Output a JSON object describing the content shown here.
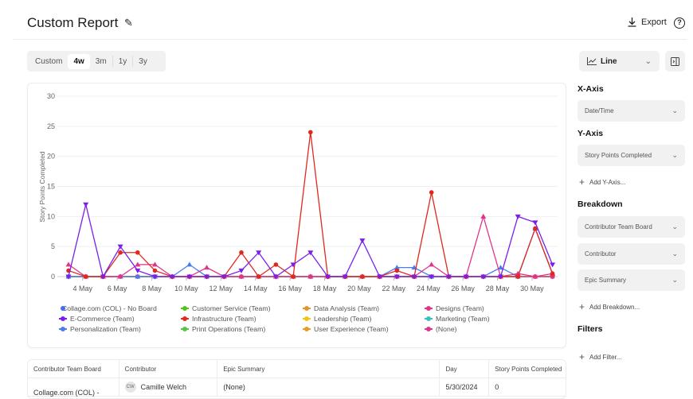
{
  "header": {
    "title": "Custom Report",
    "export_label": "Export",
    "help": "?"
  },
  "range": {
    "options": [
      "Custom",
      "4w",
      "3m",
      "1y",
      "3y"
    ],
    "active": "4w"
  },
  "chart_type": {
    "label": "Line"
  },
  "panel": {
    "x_axis_title": "X-Axis",
    "x_axis_value": "Date/Time",
    "y_axis_title": "Y-Axis",
    "y_axis_value": "Story Points Completed",
    "add_y": "Add Y-Axis...",
    "breakdown_title": "Breakdown",
    "breakdowns": [
      "Contributor Team Board",
      "Contributor",
      "Epic Summary"
    ],
    "add_breakdown": "Add Breakdown...",
    "filters_title": "Filters",
    "add_filter": "Add Filter..."
  },
  "chart_data": {
    "type": "line",
    "ylabel": "Story Points Completed",
    "xlabel": "",
    "ylim": [
      0,
      30
    ],
    "yticks": [
      0,
      5,
      10,
      15,
      20,
      25,
      30
    ],
    "x": [
      "3 May",
      "4 May",
      "5 May",
      "6 May",
      "7 May",
      "8 May",
      "9 May",
      "10 May",
      "11 May",
      "12 May",
      "13 May",
      "14 May",
      "15 May",
      "16 May",
      "17 May",
      "18 May",
      "19 May",
      "20 May",
      "21 May",
      "22 May",
      "23 May",
      "24 May",
      "25 May",
      "26 May",
      "27 May",
      "28 May",
      "29 May",
      "30 May",
      "31 May"
    ],
    "xtick_labels": [
      "4 May",
      "6 May",
      "8 May",
      "10 May",
      "12 May",
      "14 May",
      "16 May",
      "18 May",
      "20 May",
      "22 May",
      "24 May",
      "26 May",
      "28 May",
      "30 May"
    ],
    "grid": true,
    "legend_position": "bottom",
    "series": [
      {
        "name": "Collage.com (COL) - No Board",
        "color": "#3b6ff5",
        "marker": "circle",
        "values": [
          0,
          0,
          0,
          0,
          0,
          0,
          0,
          0,
          0,
          0,
          0,
          0,
          0,
          0,
          0,
          0,
          0,
          0,
          0,
          0,
          0,
          0,
          0,
          0,
          0,
          0,
          0,
          0,
          0
        ]
      },
      {
        "name": "Customer Service (Team)",
        "color": "#52c41a",
        "marker": "circle",
        "values": [
          0,
          0,
          0,
          0,
          0,
          0,
          0,
          0,
          0,
          0,
          0,
          0,
          0,
          0,
          0,
          0,
          0,
          0,
          0,
          0,
          0,
          0,
          0,
          0,
          0,
          0,
          0,
          0,
          0
        ]
      },
      {
        "name": "Data Analysis (Team)",
        "color": "#e8922a",
        "marker": "square",
        "values": [
          0,
          0,
          0,
          0,
          0,
          0,
          0,
          0,
          0,
          0,
          0,
          0,
          0,
          0,
          0,
          0,
          0,
          0,
          0,
          0,
          0,
          0,
          0,
          0,
          0,
          0,
          0,
          0,
          0
        ]
      },
      {
        "name": "Designs (Team)",
        "color": "#e0338a",
        "marker": "triangle",
        "values": [
          2,
          0,
          0,
          0,
          2,
          2,
          0,
          0,
          1.5,
          0,
          0,
          0,
          0,
          0,
          0,
          0,
          0,
          0,
          0,
          0,
          0,
          2,
          0,
          0,
          10,
          0,
          0.5,
          0,
          0.5
        ]
      },
      {
        "name": "E-Commerce (Team)",
        "color": "#7b1fe8",
        "marker": "triangle-down",
        "values": [
          0,
          12,
          0,
          5,
          1,
          0,
          0,
          0,
          0,
          0,
          1,
          4,
          0,
          2,
          4,
          0,
          0,
          6,
          0,
          0,
          0,
          0,
          0,
          0,
          0,
          0,
          10,
          9,
          2
        ]
      },
      {
        "name": "Infrastructure (Team)",
        "color": "#e0281e",
        "marker": "circle",
        "values": [
          1,
          0,
          0,
          4,
          4,
          1,
          0,
          0,
          0,
          0,
          4,
          0,
          2,
          0,
          24,
          0,
          0,
          0,
          0,
          1,
          0,
          14,
          0,
          0,
          0,
          0,
          0,
          8,
          0.5
        ]
      },
      {
        "name": "Leadership (Team)",
        "color": "#f0c419",
        "marker": "diamond",
        "values": [
          0,
          0,
          0,
          0,
          0,
          0,
          0,
          0,
          0,
          0,
          0,
          0,
          0,
          0,
          0,
          0,
          0,
          0,
          0,
          0,
          0,
          0,
          0,
          0,
          0,
          0,
          0,
          0,
          0
        ]
      },
      {
        "name": "Marketing (Team)",
        "color": "#3bbfbf",
        "marker": "square",
        "values": [
          0,
          0,
          0,
          0,
          0,
          0,
          0,
          0,
          0,
          0,
          0,
          0,
          0,
          0,
          0,
          0,
          0,
          0,
          0,
          0,
          0,
          0,
          0,
          0,
          0,
          0,
          0,
          0,
          0
        ]
      },
      {
        "name": "Personalization (Team)",
        "color": "#4a7cf0",
        "marker": "triangle",
        "values": [
          0,
          0,
          0,
          0,
          0,
          0,
          0,
          2,
          0,
          0,
          0,
          0,
          0,
          0,
          0,
          0,
          0,
          0,
          0,
          1.5,
          1.5,
          0,
          0,
          0,
          0,
          1.5,
          0,
          8,
          0.5
        ]
      },
      {
        "name": "Print Operations (Team)",
        "color": "#56c443",
        "marker": "square",
        "values": [
          0,
          0,
          0,
          0,
          0,
          0,
          0,
          0,
          0,
          0,
          0,
          0,
          0,
          0,
          0,
          0,
          0,
          0,
          0,
          0,
          0,
          0,
          0,
          0,
          0,
          0,
          0,
          0,
          0
        ]
      },
      {
        "name": "User Experience (Team)",
        "color": "#e89a2a",
        "marker": "square",
        "values": [
          0,
          0,
          0,
          0,
          0,
          0,
          0,
          0,
          0,
          0,
          0,
          0,
          0,
          0,
          0,
          0,
          0,
          0,
          0,
          0,
          0,
          0,
          0,
          0,
          0,
          0,
          0,
          0,
          0
        ]
      },
      {
        "name": "(None)",
        "color": "#e0338a",
        "marker": "circle",
        "values": [
          0,
          0,
          0,
          0,
          0,
          0,
          0,
          0,
          0,
          0,
          0,
          0,
          0,
          0,
          0,
          0,
          0,
          0,
          0,
          0,
          0,
          0,
          0,
          0,
          0,
          0,
          0,
          0,
          0
        ]
      }
    ]
  },
  "table": {
    "columns": [
      "Contributor Team Board",
      "Contributor",
      "Epic Summary",
      "Day",
      "Story Points Completed"
    ],
    "rows": [
      {
        "team": "Collage.com (COL) -",
        "avatar": "CW",
        "contributor": "Camille Welch",
        "epic": "(None)",
        "day": "5/30/2024",
        "points": "0"
      }
    ]
  }
}
